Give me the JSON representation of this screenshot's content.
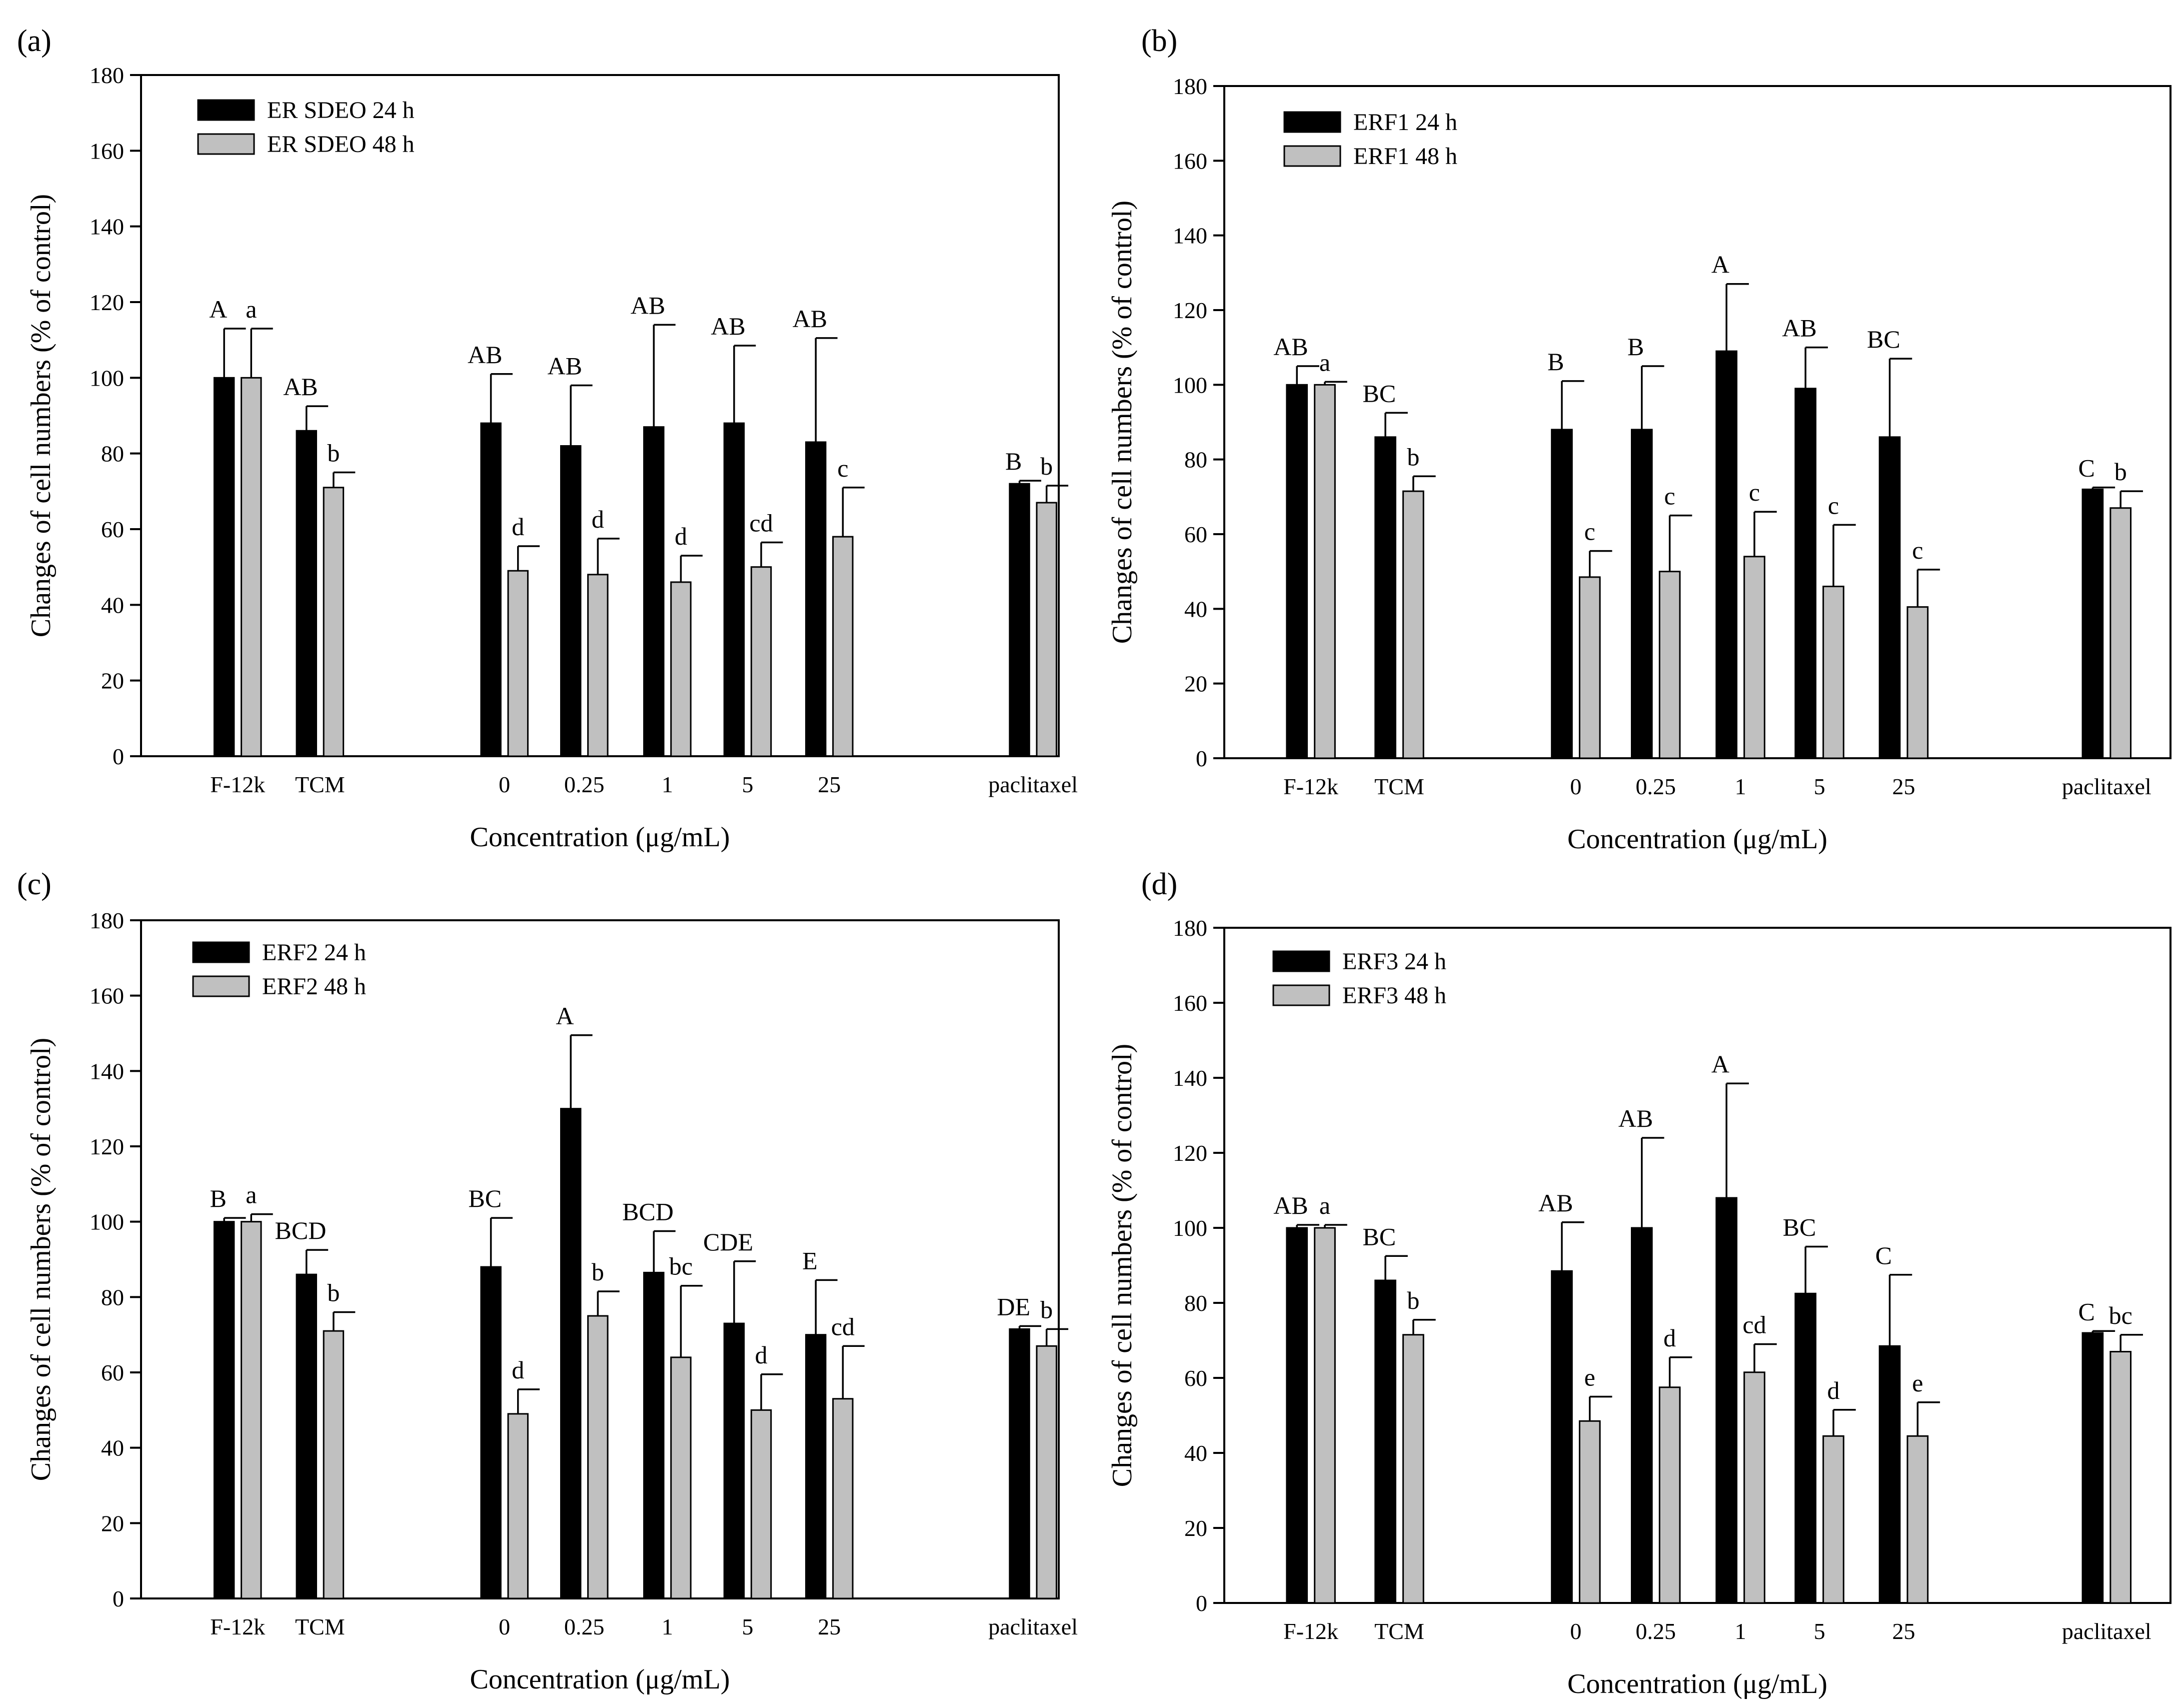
{
  "colors": {
    "bar24": "#000000",
    "bar48": "#c0c0c0",
    "axis": "#000000",
    "background": "#ffffff"
  },
  "chart_data": [
    {
      "panel_label": "(a)",
      "type": "bar",
      "categories": [
        "F-12k",
        "TCM",
        "0",
        "0.25",
        "1",
        "5",
        "25",
        "paclitaxel"
      ],
      "xlabel": "Concentration (μg/mL)",
      "ylabel": "Changes of cell numbers (% of control)",
      "ylim": [
        0,
        180
      ],
      "yticks": [
        0,
        20,
        40,
        60,
        80,
        100,
        120,
        140,
        160,
        180
      ],
      "legend_position": "top-left",
      "series": [
        {
          "name": "ER SDEO 24 h",
          "values": [
            100,
            86,
            88,
            82,
            87,
            88,
            83,
            72
          ],
          "errors": [
            13,
            6.5,
            13,
            16,
            27,
            20.5,
            27.5,
            0.8
          ],
          "labels": [
            "A",
            "AB",
            "AB",
            "AB",
            "AB",
            "AB",
            "AB",
            "B"
          ]
        },
        {
          "name": "ER SDEO 48 h",
          "values": [
            100,
            71,
            49,
            48,
            46,
            50,
            58,
            67
          ],
          "errors": [
            13,
            4,
            6.5,
            9.5,
            7,
            6.5,
            13,
            4.5
          ],
          "labels": [
            "a",
            "b",
            "d",
            "d",
            "d",
            "cd",
            "c",
            "b"
          ]
        }
      ]
    },
    {
      "panel_label": "(b)",
      "type": "bar",
      "categories": [
        "F-12k",
        "TCM",
        "0",
        "0.25",
        "1",
        "5",
        "25",
        "paclitaxel"
      ],
      "xlabel": "Concentration (μg/mL)",
      "ylabel": "Changes of cell numbers (% of control)",
      "ylim": [
        0,
        180
      ],
      "yticks": [
        0,
        20,
        40,
        60,
        80,
        100,
        120,
        140,
        160,
        180
      ],
      "legend_position": "top-left",
      "series": [
        {
          "name": "ERF1 24 h",
          "values": [
            100,
            86,
            88,
            88,
            109,
            99,
            86,
            72
          ],
          "errors": [
            5,
            6.5,
            13,
            17,
            18,
            11,
            21,
            0.5
          ],
          "labels": [
            "AB",
            "BC",
            "B",
            "B",
            "A",
            "AB",
            "BC",
            "C"
          ]
        },
        {
          "name": "ERF1 48 h",
          "values": [
            100,
            71.5,
            48.5,
            50,
            54,
            46,
            40.5,
            67
          ],
          "errors": [
            0.8,
            4,
            7,
            15,
            12,
            16.5,
            10,
            4.5
          ],
          "labels": [
            "a",
            "b",
            "c",
            "c",
            "c",
            "c",
            "c",
            "b"
          ]
        }
      ]
    },
    {
      "panel_label": "(c)",
      "type": "bar",
      "categories": [
        "F-12k",
        "TCM",
        "0",
        "0.25",
        "1",
        "5",
        "25",
        "paclitaxel"
      ],
      "xlabel": "Concentration (μg/mL)",
      "ylabel": "Changes of cell numbers (% of control)",
      "ylim": [
        0,
        180
      ],
      "yticks": [
        0,
        20,
        40,
        60,
        80,
        100,
        120,
        140,
        160,
        180
      ],
      "legend_position": "top-left",
      "series": [
        {
          "name": "ERF2 24 h",
          "values": [
            100,
            86,
            88,
            130,
            86.5,
            73,
            70,
            71.5
          ],
          "errors": [
            1,
            6.5,
            13,
            19.5,
            11,
            16.5,
            14.5,
            0.8
          ],
          "labels": [
            "B",
            "BCD",
            "BC",
            "A",
            "BCD",
            "CDE",
            "E",
            "DE"
          ]
        },
        {
          "name": "ERF2 48 h",
          "values": [
            100,
            71,
            49,
            75,
            64,
            50,
            53,
            67
          ],
          "errors": [
            2,
            5,
            6.5,
            6.5,
            19,
            9.5,
            14,
            4.5
          ],
          "labels": [
            "a",
            "b",
            "d",
            "b",
            "bc",
            "d",
            "cd",
            "b"
          ]
        }
      ]
    },
    {
      "panel_label": "(d)",
      "type": "bar",
      "categories": [
        "F-12k",
        "TCM",
        "0",
        "0.25",
        "1",
        "5",
        "25",
        "paclitaxel"
      ],
      "xlabel": "Concentration (μg/mL)",
      "ylabel": "Changes of cell numbers (% of control)",
      "ylim": [
        0,
        180
      ],
      "yticks": [
        0,
        20,
        40,
        60,
        80,
        100,
        120,
        140,
        160,
        180
      ],
      "legend_position": "top-left",
      "series": [
        {
          "name": "ERF3 24 h",
          "values": [
            100,
            86,
            88.5,
            100,
            108,
            82.5,
            68.5,
            72
          ],
          "errors": [
            0.8,
            6.5,
            13,
            24,
            30.5,
            12.5,
            19,
            0.5
          ],
          "labels": [
            "AB",
            "BC",
            "AB",
            "AB",
            "A",
            "BC",
            "C",
            "C"
          ]
        },
        {
          "name": "ERF3 48 h",
          "values": [
            100,
            71.5,
            48.5,
            57.5,
            61.5,
            44.5,
            44.5,
            67
          ],
          "errors": [
            0.8,
            4,
            6.5,
            8,
            7.5,
            7,
            9,
            4.5
          ],
          "labels": [
            "a",
            "b",
            "e",
            "d",
            "cd",
            "d",
            "e",
            "bc"
          ]
        }
      ]
    }
  ]
}
